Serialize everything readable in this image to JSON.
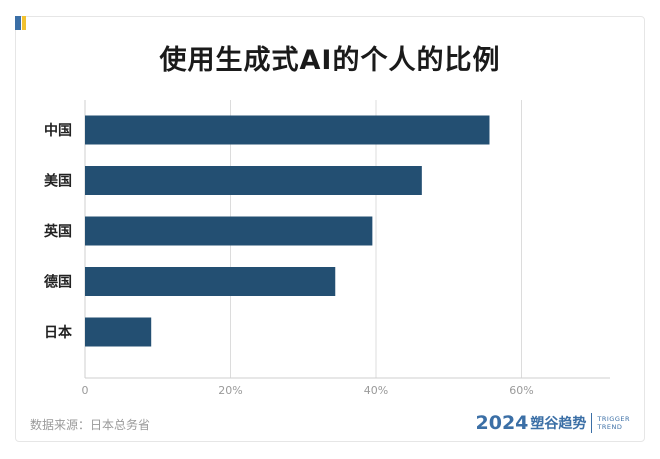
{
  "chart_data": {
    "type": "bar",
    "orientation": "horizontal",
    "title": "使用生成式AI的个人的比例",
    "categories": [
      "中国",
      "美国",
      "英国",
      "德国",
      "日本"
    ],
    "values": [
      55.6,
      46.3,
      39.5,
      34.4,
      9.1
    ],
    "xlim": [
      0,
      70
    ],
    "xticks": [
      0,
      20,
      40,
      60
    ],
    "xtick_labels": [
      "0",
      "20%",
      "40%",
      "60%"
    ],
    "grid": true,
    "legend": "none",
    "bar_color": "#234f72"
  },
  "source_text": "数据来源：日本总务省",
  "brand": {
    "year": "2024",
    "name": "塑谷趋势",
    "en_line1": "TRIGGER",
    "en_line2": "TREND"
  },
  "colors": {
    "accent_blue": "#3b6fa6",
    "accent_yellow": "#f2c230"
  }
}
